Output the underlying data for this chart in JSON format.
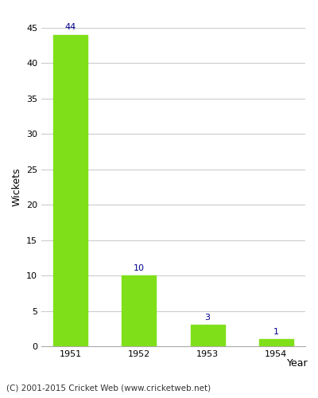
{
  "categories": [
    "1951",
    "1952",
    "1953",
    "1954"
  ],
  "values": [
    44,
    10,
    3,
    1
  ],
  "bar_color": "#7FE01A",
  "ylabel": "Wickets",
  "xlabel": "Year",
  "ylim": [
    0,
    45
  ],
  "yticks": [
    0,
    5,
    10,
    15,
    20,
    25,
    30,
    35,
    40,
    45
  ],
  "label_color": "#00008B",
  "label_fontsize": 8,
  "tick_fontsize": 8,
  "axis_label_fontsize": 9,
  "footnote": "(C) 2001-2015 Cricket Web (www.cricketweb.net)",
  "footnote_fontsize": 7.5,
  "background_color": "#ffffff",
  "grid_color": "#cccccc"
}
